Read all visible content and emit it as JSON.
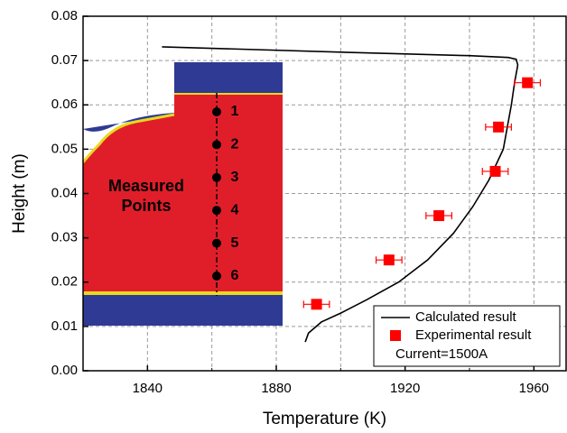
{
  "chart_data": {
    "type": "line",
    "xlabel": "Temperature (K)",
    "ylabel": "Height (m)",
    "xlim": [
      1820,
      1970
    ],
    "ylim": [
      0,
      0.08
    ],
    "xticks": [
      1840,
      1880,
      1920,
      1960
    ],
    "x_minor_ticks": [
      1860,
      1900,
      1940
    ],
    "yticks": [
      {
        "value": 0,
        "label": "0.00"
      },
      {
        "value": 0.01,
        "label": "0.01"
      },
      {
        "value": 0.02,
        "label": "0.02"
      },
      {
        "value": 0.03,
        "label": "0.03"
      },
      {
        "value": 0.04,
        "label": "0.04"
      },
      {
        "value": 0.05,
        "label": "0.05"
      },
      {
        "value": 0.06,
        "label": "0.06"
      },
      {
        "value": 0.07,
        "label": "0.07"
      },
      {
        "value": 0.08,
        "label": "0.08"
      }
    ],
    "grid": true,
    "legend": "lower right",
    "legend_note": "Current=1500A",
    "series": [
      {
        "name": "Calculated result",
        "type": "line",
        "color": "#000000",
        "x": [
          1844.5,
          1900,
          1940,
          1952,
          1954.5,
          1955,
          1954,
          1953,
          1950.5,
          1946,
          1941,
          1935,
          1927,
          1918,
          1908,
          1900,
          1894,
          1890,
          1889
        ],
        "values": [
          0.0731,
          0.0719,
          0.0711,
          0.0707,
          0.0703,
          0.069,
          0.065,
          0.06,
          0.05,
          0.043,
          0.037,
          0.031,
          0.025,
          0.02,
          0.016,
          0.013,
          0.011,
          0.0085,
          0.0065
        ]
      },
      {
        "name": "Experimental result",
        "type": "scatter",
        "color": "#ff0000",
        "x": [
          1958,
          1949,
          1948,
          1930.5,
          1915,
          1892.5
        ],
        "values": [
          0.065,
          0.055,
          0.045,
          0.035,
          0.025,
          0.015
        ],
        "xerr": [
          4,
          4,
          4,
          4,
          4,
          4
        ]
      }
    ],
    "annotations": {
      "inset_label": "Measured Points",
      "point_labels": [
        "1",
        "2",
        "3",
        "4",
        "5",
        "6"
      ]
    }
  }
}
